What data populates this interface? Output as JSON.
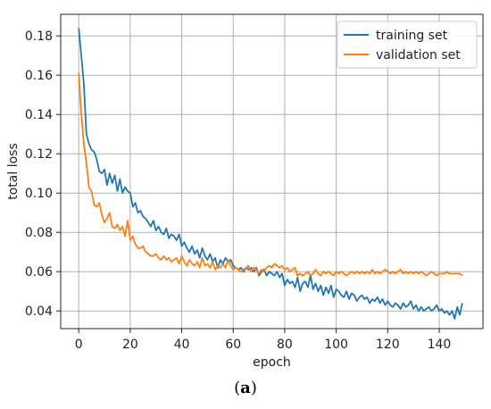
{
  "caption": {
    "open": "(",
    "letter": "a",
    "close": ")"
  },
  "chart_data": {
    "type": "line",
    "xlabel": "epoch",
    "ylabel": "total loss",
    "xlim": [
      -7,
      157
    ],
    "ylim": [
      0.031,
      0.191
    ],
    "xticks": [
      0,
      20,
      40,
      60,
      80,
      100,
      120,
      140
    ],
    "yticks": [
      0.04,
      0.06,
      0.08,
      0.1,
      0.12,
      0.14,
      0.16,
      0.18
    ],
    "ytick_labels": [
      "0.04",
      "0.06",
      "0.08",
      "0.10",
      "0.12",
      "0.14",
      "0.16",
      "0.18"
    ],
    "grid": true,
    "legend_position": "top-right",
    "series": [
      {
        "name": "training set",
        "color": "#1f77b4",
        "x": [
          0,
          1,
          2,
          3,
          4,
          5,
          6,
          7,
          8,
          9,
          10,
          11,
          12,
          13,
          14,
          15,
          16,
          17,
          18,
          19,
          20,
          21,
          22,
          23,
          24,
          25,
          26,
          27,
          28,
          29,
          30,
          31,
          32,
          33,
          34,
          35,
          36,
          37,
          38,
          39,
          40,
          41,
          42,
          43,
          44,
          45,
          46,
          47,
          48,
          49,
          50,
          51,
          52,
          53,
          54,
          55,
          56,
          57,
          58,
          59,
          60,
          61,
          62,
          63,
          64,
          65,
          66,
          67,
          68,
          69,
          70,
          71,
          72,
          73,
          74,
          75,
          76,
          77,
          78,
          79,
          80,
          81,
          82,
          83,
          84,
          85,
          86,
          87,
          88,
          89,
          90,
          91,
          92,
          93,
          94,
          95,
          96,
          97,
          98,
          99,
          100,
          101,
          102,
          103,
          104,
          105,
          106,
          107,
          108,
          109,
          110,
          111,
          112,
          113,
          114,
          115,
          116,
          117,
          118,
          119,
          120,
          121,
          122,
          123,
          124,
          125,
          126,
          127,
          128,
          129,
          130,
          131,
          132,
          133,
          134,
          135,
          136,
          137,
          138,
          139,
          140,
          141,
          142,
          143,
          144,
          145,
          146,
          147,
          148,
          149
        ],
        "y": [
          0.184,
          0.17,
          0.155,
          0.13,
          0.125,
          0.122,
          0.121,
          0.117,
          0.111,
          0.11,
          0.112,
          0.104,
          0.11,
          0.105,
          0.109,
          0.101,
          0.107,
          0.1,
          0.103,
          0.101,
          0.1,
          0.093,
          0.095,
          0.09,
          0.091,
          0.088,
          0.087,
          0.085,
          0.083,
          0.086,
          0.081,
          0.083,
          0.08,
          0.079,
          0.082,
          0.077,
          0.079,
          0.078,
          0.076,
          0.079,
          0.073,
          0.075,
          0.072,
          0.07,
          0.073,
          0.069,
          0.071,
          0.067,
          0.072,
          0.068,
          0.066,
          0.069,
          0.065,
          0.067,
          0.062,
          0.066,
          0.064,
          0.067,
          0.065,
          0.066,
          0.063,
          0.062,
          0.061,
          0.062,
          0.06,
          0.062,
          0.061,
          0.062,
          0.06,
          0.062,
          0.058,
          0.06,
          0.061,
          0.058,
          0.06,
          0.059,
          0.058,
          0.06,
          0.057,
          0.059,
          0.053,
          0.056,
          0.054,
          0.055,
          0.052,
          0.057,
          0.05,
          0.054,
          0.055,
          0.052,
          0.058,
          0.051,
          0.054,
          0.05,
          0.053,
          0.048,
          0.052,
          0.049,
          0.053,
          0.047,
          0.051,
          0.05,
          0.048,
          0.047,
          0.05,
          0.046,
          0.049,
          0.048,
          0.045,
          0.047,
          0.048,
          0.046,
          0.047,
          0.044,
          0.046,
          0.045,
          0.047,
          0.044,
          0.046,
          0.043,
          0.045,
          0.043,
          0.042,
          0.044,
          0.043,
          0.041,
          0.044,
          0.042,
          0.043,
          0.045,
          0.041,
          0.043,
          0.04,
          0.042,
          0.04,
          0.041,
          0.042,
          0.04,
          0.041,
          0.043,
          0.04,
          0.041,
          0.039,
          0.04,
          0.038,
          0.04,
          0.036,
          0.042,
          0.038,
          0.044
        ]
      },
      {
        "name": "validation set",
        "color": "#ff7f0e",
        "x": [
          0,
          1,
          2,
          3,
          4,
          5,
          6,
          7,
          8,
          9,
          10,
          11,
          12,
          13,
          14,
          15,
          16,
          17,
          18,
          19,
          20,
          21,
          22,
          23,
          24,
          25,
          26,
          27,
          28,
          29,
          30,
          31,
          32,
          33,
          34,
          35,
          36,
          37,
          38,
          39,
          40,
          41,
          42,
          43,
          44,
          45,
          46,
          47,
          48,
          49,
          50,
          51,
          52,
          53,
          54,
          55,
          56,
          57,
          58,
          59,
          60,
          61,
          62,
          63,
          64,
          65,
          66,
          67,
          68,
          69,
          70,
          71,
          72,
          73,
          74,
          75,
          76,
          77,
          78,
          79,
          80,
          81,
          82,
          83,
          84,
          85,
          86,
          87,
          88,
          89,
          90,
          91,
          92,
          93,
          94,
          95,
          96,
          97,
          98,
          99,
          100,
          101,
          102,
          103,
          104,
          105,
          106,
          107,
          108,
          109,
          110,
          111,
          112,
          113,
          114,
          115,
          116,
          117,
          118,
          119,
          120,
          121,
          122,
          123,
          124,
          125,
          126,
          127,
          128,
          129,
          130,
          131,
          132,
          133,
          134,
          135,
          136,
          137,
          138,
          139,
          140,
          141,
          142,
          143,
          144,
          145,
          146,
          147,
          148,
          149
        ],
        "y": [
          0.161,
          0.14,
          0.125,
          0.115,
          0.103,
          0.101,
          0.094,
          0.093,
          0.095,
          0.089,
          0.085,
          0.087,
          0.09,
          0.083,
          0.082,
          0.084,
          0.081,
          0.083,
          0.078,
          0.086,
          0.076,
          0.078,
          0.074,
          0.072,
          0.072,
          0.073,
          0.07,
          0.069,
          0.068,
          0.068,
          0.069,
          0.067,
          0.066,
          0.068,
          0.066,
          0.067,
          0.065,
          0.066,
          0.067,
          0.064,
          0.068,
          0.065,
          0.063,
          0.066,
          0.064,
          0.063,
          0.065,
          0.062,
          0.067,
          0.063,
          0.064,
          0.062,
          0.065,
          0.061,
          0.063,
          0.062,
          0.064,
          0.062,
          0.066,
          0.063,
          0.061,
          0.062,
          0.061,
          0.06,
          0.061,
          0.062,
          0.063,
          0.06,
          0.062,
          0.061,
          0.059,
          0.061,
          0.06,
          0.062,
          0.063,
          0.062,
          0.064,
          0.063,
          0.062,
          0.063,
          0.061,
          0.062,
          0.06,
          0.061,
          0.062,
          0.058,
          0.059,
          0.058,
          0.059,
          0.06,
          0.058,
          0.059,
          0.061,
          0.059,
          0.058,
          0.06,
          0.059,
          0.06,
          0.059,
          0.058,
          0.06,
          0.059,
          0.06,
          0.059,
          0.058,
          0.059,
          0.06,
          0.059,
          0.06,
          0.059,
          0.06,
          0.059,
          0.06,
          0.059,
          0.061,
          0.059,
          0.06,
          0.059,
          0.06,
          0.061,
          0.06,
          0.059,
          0.06,
          0.059,
          0.06,
          0.061,
          0.059,
          0.06,
          0.059,
          0.06,
          0.059,
          0.06,
          0.059,
          0.06,
          0.059,
          0.058,
          0.059,
          0.06,
          0.059,
          0.058,
          0.059,
          0.059,
          0.059,
          0.06,
          0.059,
          0.059,
          0.059,
          0.059,
          0.059,
          0.058
        ]
      }
    ]
  }
}
